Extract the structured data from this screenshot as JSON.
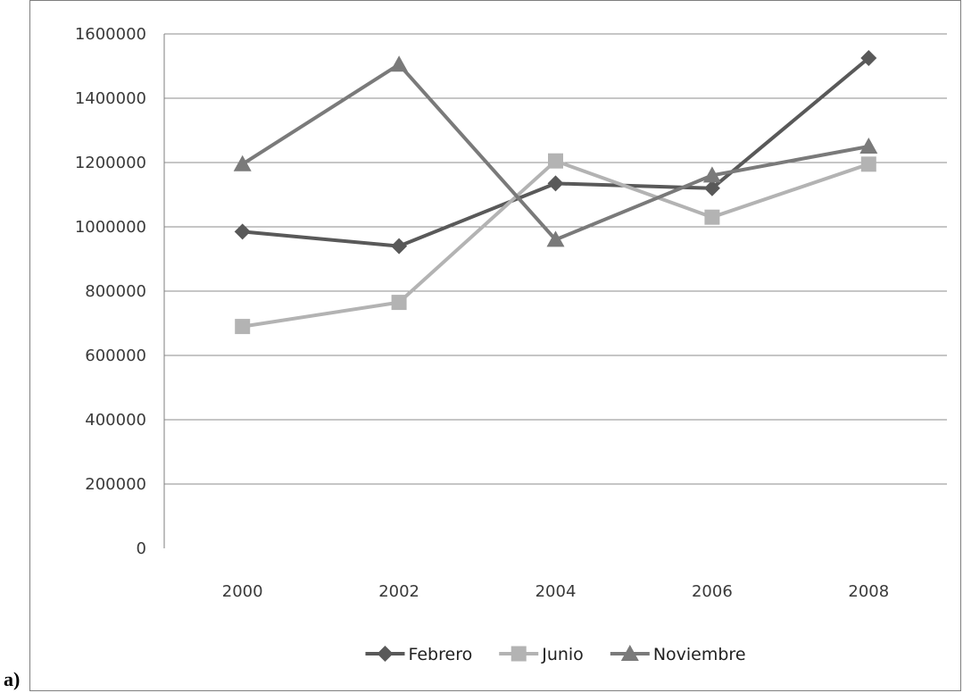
{
  "panel_label": "a)",
  "chart_data": {
    "type": "line",
    "categories": [
      "2000",
      "2002",
      "2004",
      "2006",
      "2008"
    ],
    "ylim": [
      0,
      1600000
    ],
    "yticks": [
      0,
      200000,
      400000,
      600000,
      800000,
      1000000,
      1200000,
      1400000,
      1600000
    ],
    "grid": true,
    "legend_position": "bottom",
    "series": [
      {
        "name": "Febrero",
        "marker": "diamond",
        "color": "#595959",
        "values": [
          985000,
          940000,
          1135000,
          1120000,
          1525000
        ]
      },
      {
        "name": "Junio",
        "marker": "square",
        "color": "#b3b3b3",
        "values": [
          690000,
          765000,
          1205000,
          1030000,
          1195000
        ]
      },
      {
        "name": "Noviembre",
        "marker": "triangle",
        "color": "#7a7a7a",
        "values": [
          1195000,
          1505000,
          960000,
          1160000,
          1250000
        ]
      }
    ]
  }
}
